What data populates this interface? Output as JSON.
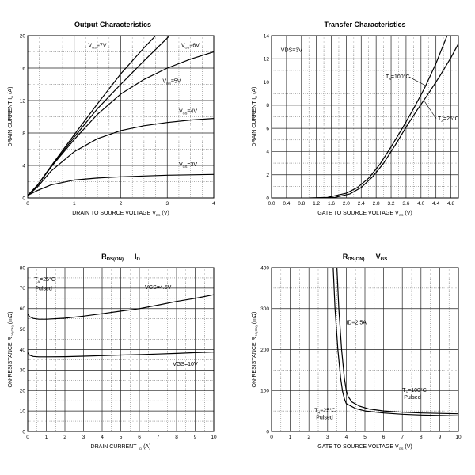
{
  "charts": [
    {
      "id": "output",
      "type": "line",
      "title": "Output Characteristics",
      "xlabel": "DRAIN TO SOURCE VOLTAGE",
      "xlabel_sym": "V",
      "xlabel_sub": "DS",
      "xlabel_unit": "(V)",
      "ylabel": "DRAIN CURRENT",
      "ylabel_sym": "I",
      "ylabel_sub": "D",
      "ylabel_unit": "(A)",
      "xlim": [
        0,
        4
      ],
      "ylim": [
        0,
        20
      ],
      "xticks": [
        0,
        1,
        2,
        3,
        4
      ],
      "yticks": [
        0,
        4,
        8,
        12,
        16,
        20
      ],
      "series": [
        {
          "name": "VGS=7V",
          "sym": "V",
          "sub": "GS",
          "suffix": "=7V",
          "x": [
            0,
            0.2,
            0.5,
            1,
            1.5,
            2,
            2.5,
            2.75
          ],
          "y": [
            0.3,
            1.5,
            3.9,
            7.8,
            11.6,
            15.3,
            18.5,
            20
          ]
        },
        {
          "name": "VGS=6V",
          "sym": "V",
          "sub": "GS",
          "suffix": "=6V",
          "x": [
            0,
            0.2,
            0.5,
            1,
            1.5,
            2,
            2.5,
            3,
            3.05
          ],
          "y": [
            0.3,
            1.5,
            3.8,
            7.5,
            11.0,
            14.0,
            16.9,
            19.7,
            20
          ]
        },
        {
          "name": "VGS=5V",
          "sym": "V",
          "sub": "GS",
          "suffix": "=5V",
          "x": [
            0,
            0.2,
            0.5,
            1,
            1.5,
            2,
            2.5,
            3,
            3.5,
            4
          ],
          "y": [
            0.3,
            1.5,
            3.8,
            7.2,
            10.3,
            12.8,
            14.6,
            16.0,
            17.1,
            18.0
          ]
        },
        {
          "name": "VGS=4V",
          "sym": "V",
          "sub": "GS",
          "suffix": "=4V",
          "x": [
            0,
            0.2,
            0.5,
            1,
            1.5,
            2,
            2.5,
            3,
            3.5,
            4
          ],
          "y": [
            0.3,
            1.3,
            3.3,
            5.7,
            7.3,
            8.3,
            8.9,
            9.3,
            9.6,
            9.8
          ]
        },
        {
          "name": "VGS=3V",
          "sym": "V",
          "sub": "GS",
          "suffix": "=3V",
          "x": [
            0,
            0.2,
            0.5,
            1,
            1.5,
            2,
            2.5,
            3,
            3.5,
            4
          ],
          "y": [
            0.3,
            0.9,
            1.6,
            2.2,
            2.45,
            2.6,
            2.7,
            2.8,
            2.85,
            2.9
          ]
        }
      ],
      "labels": [
        {
          "series": "VGS=7V",
          "x": 1.3,
          "y": 18.6
        },
        {
          "series": "VGS=6V",
          "x": 3.3,
          "y": 18.6
        },
        {
          "series": "VGS=5V",
          "x": 2.9,
          "y": 14.2
        },
        {
          "series": "VGS=4V",
          "x": 3.25,
          "y": 10.5
        },
        {
          "series": "VGS=3V",
          "x": 3.25,
          "y": 3.9
        }
      ]
    },
    {
      "id": "transfer",
      "type": "line",
      "title": "Transfer Characteristics",
      "xlabel": "GATE TO SOURCE VOLTAGE",
      "xlabel_sym": "V",
      "xlabel_sub": "GS",
      "xlabel_unit": "(V)",
      "ylabel": "DRAIN CURRENT",
      "ylabel_sym": "I",
      "ylabel_sub": "D",
      "ylabel_unit": "(A)",
      "xlim": [
        0,
        5
      ],
      "ylim": [
        0,
        14
      ],
      "xticks": [
        0.0,
        0.4,
        0.8,
        1.2,
        1.6,
        2.0,
        2.4,
        2.8,
        3.2,
        3.6,
        4.0,
        4.4,
        4.8
      ],
      "ytick_step": 2,
      "yticks": [
        0,
        2,
        4,
        6,
        8,
        10,
        12,
        14
      ],
      "annotation": "VDS=3V",
      "series": [
        {
          "name": "TA=100°C",
          "sym": "T",
          "sub": "A",
          "suffix": "=100°C",
          "x": [
            1.0,
            1.5,
            2.0,
            2.3,
            2.6,
            2.9,
            3.2,
            3.5,
            3.8,
            4.1,
            4.4,
            4.6,
            4.7
          ],
          "y": [
            0,
            0.05,
            0.4,
            0.9,
            1.7,
            2.9,
            4.4,
            6.0,
            7.7,
            9.5,
            11.6,
            13.2,
            14
          ]
        },
        {
          "name": "TA=25°C",
          "sym": "T",
          "sub": "A",
          "suffix": "=25°C",
          "x": [
            1.2,
            1.7,
            2.1,
            2.4,
            2.7,
            3.0,
            3.3,
            3.6,
            3.9,
            4.2,
            4.5,
            4.8,
            5.0
          ],
          "y": [
            0,
            0.05,
            0.35,
            0.9,
            1.8,
            3.0,
            4.5,
            6.1,
            7.6,
            9.0,
            10.5,
            12.1,
            13.3
          ]
        }
      ],
      "labels": [
        {
          "series": "TA=100°C",
          "x": 3.05,
          "y": 10.3,
          "lead_x": 4.12,
          "lead_y": 9.7
        },
        {
          "series": "TA=25°C",
          "x": 4.45,
          "y": 6.7,
          "lead_x": 4.1,
          "lead_y": 8.3
        }
      ]
    },
    {
      "id": "rds_id",
      "type": "line",
      "title_sym": "R",
      "title_sub": "DS(ON)",
      "title_dash": "—",
      "title_end_sym": "I",
      "title_end_sub": "D",
      "xlabel": "DRAIN CURRENT",
      "xlabel_sym": "I",
      "xlabel_sub": "D",
      "xlabel_unit": "(A)",
      "ylabel": "ON-RESISTANCE",
      "ylabel_sym": "R",
      "ylabel_sub": "DS(ON)",
      "ylabel_unit": "(mΩ)",
      "xlim": [
        0,
        10
      ],
      "ylim": [
        0,
        80
      ],
      "xticks": [
        0,
        1,
        2,
        3,
        4,
        5,
        6,
        7,
        8,
        9,
        10
      ],
      "yticks": [
        0,
        10,
        20,
        30,
        40,
        50,
        60,
        70,
        80
      ],
      "annotation_lines": [
        "TA=25°C",
        "Pulsed"
      ],
      "annotation_sym": "T",
      "annotation_sub": "A",
      "annotation_suffix": "=25°C",
      "annotation_line2": "Pulsed",
      "series": [
        {
          "name": "VGS=4.5V",
          "x": [
            0,
            0.1,
            0.3,
            0.6,
            1,
            2,
            3,
            4,
            5,
            6,
            7,
            8,
            9,
            10
          ],
          "y": [
            57.5,
            56.0,
            55.2,
            54.8,
            54.8,
            55.3,
            56.3,
            57.5,
            58.8,
            60.0,
            61.7,
            63.5,
            65.0,
            66.8
          ]
        },
        {
          "name": "VGS=10V",
          "x": [
            0,
            0.1,
            0.3,
            0.6,
            1,
            2,
            3,
            4,
            5,
            6,
            7,
            8,
            9,
            10
          ],
          "y": [
            38.5,
            37.2,
            36.6,
            36.4,
            36.4,
            36.5,
            36.7,
            37.0,
            37.3,
            37.5,
            37.8,
            38.1,
            38.5,
            38.8
          ]
        }
      ],
      "labels": [
        {
          "series": "VGS=4.5V",
          "x": 6.3,
          "y": 69.5
        },
        {
          "series": "VGS=10V",
          "x": 7.8,
          "y": 32
        }
      ]
    },
    {
      "id": "rds_vgs",
      "type": "line",
      "title_sym": "R",
      "title_sub": "DS(ON)",
      "title_dash": "—",
      "title_end_sym": "V",
      "title_end_sub": "GS",
      "xlabel": "GATE TO SOURCE VOLTAGE",
      "xlabel_sym": "V",
      "xlabel_sub": "GS",
      "xlabel_unit": "(V)",
      "ylabel": "ON-RESISTANCE",
      "ylabel_sym": "R",
      "ylabel_sub": "DS(ON)",
      "ylabel_unit": "(mΩ)",
      "xlim": [
        0,
        10
      ],
      "ylim": [
        0,
        400
      ],
      "xticks": [
        0,
        1,
        2,
        3,
        4,
        5,
        6,
        7,
        8,
        9,
        10
      ],
      "yticks": [
        0,
        100,
        200,
        300,
        400
      ],
      "annotation": "ID=2.5A",
      "series": [
        {
          "name": "TA=25°C Pulsed",
          "x": [
            3.3,
            3.4,
            3.55,
            3.7,
            3.8,
            3.9,
            4.0,
            4.5,
            5,
            6,
            7,
            8,
            9,
            10
          ],
          "y": [
            400,
            300,
            200,
            130,
            98,
            80,
            68,
            56,
            50,
            45,
            42,
            40,
            39,
            38
          ]
        },
        {
          "name": "TA=100°C Pulsed",
          "x": [
            3.5,
            3.6,
            3.75,
            3.9,
            4.0,
            4.1,
            4.3,
            4.7,
            5.2,
            6,
            7,
            8,
            9,
            10
          ],
          "y": [
            400,
            300,
            200,
            130,
            100,
            85,
            72,
            62,
            55,
            50,
            47,
            45,
            44,
            43
          ]
        }
      ],
      "labels": [
        {
          "series": "TA=100°C",
          "sym": "T",
          "sub": "A",
          "suffix": "=100°C",
          "line2": "Pulsed",
          "x": 7.0,
          "y": 97
        },
        {
          "series": "TA=25°C",
          "sym": "T",
          "sub": "A",
          "suffix": "=25°C",
          "line2": "Pulsed",
          "x": 2.3,
          "y": 47
        }
      ]
    }
  ]
}
